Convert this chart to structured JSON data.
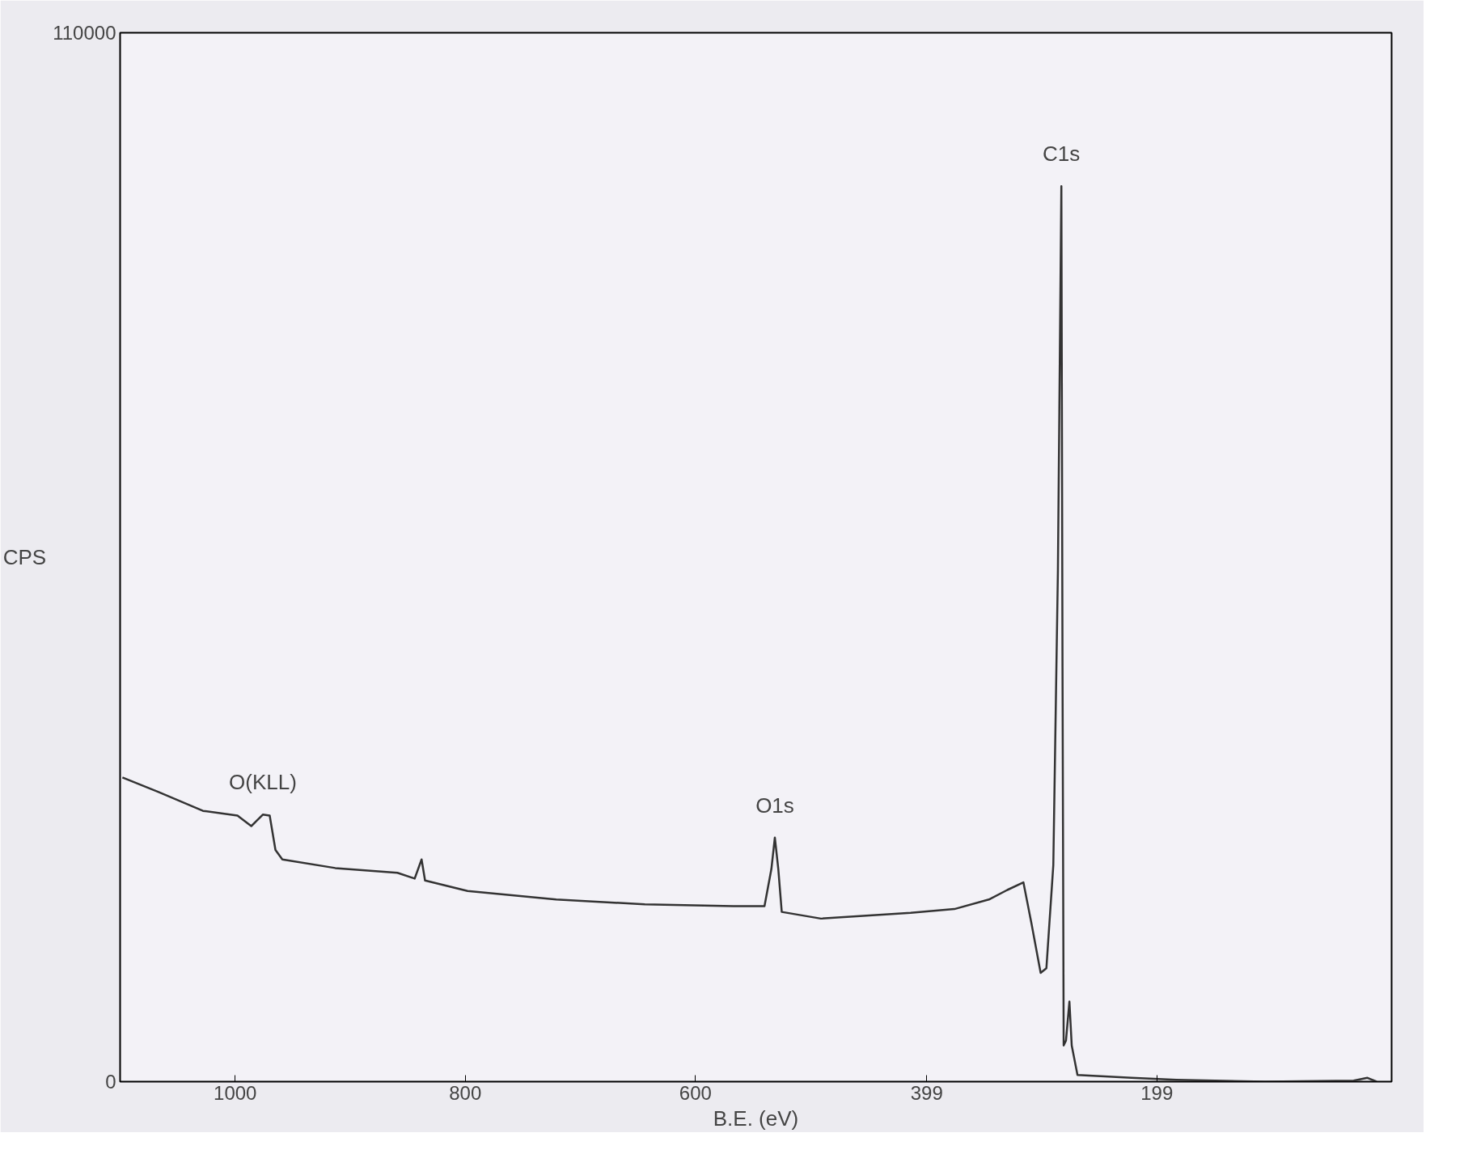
{
  "chart_data": {
    "type": "line",
    "xlabel": "B.E. (eV)",
    "ylabel": "CPS",
    "xlim": [
      1100,
      -5
    ],
    "ylim": [
      0,
      110000
    ],
    "xticks": [
      1000,
      800,
      600,
      399,
      199
    ],
    "yticks": [
      0,
      110000
    ],
    "grid": false,
    "marker": "none",
    "line_style": "solid",
    "series": [
      {
        "color": "#333333",
        "x": [
          1098,
          1067,
          1028,
          998,
          986,
          976,
          970,
          965,
          959,
          913,
          859,
          844,
          838,
          835,
          798,
          721,
          644,
          567,
          540,
          534,
          531,
          528,
          525,
          491,
          413,
          375,
          345,
          329,
          315,
          308,
          300,
          295,
          289,
          285,
          282,
          281,
          280,
          278,
          275,
          273,
          268,
          221,
          182,
          105,
          28,
          16,
          8
        ],
        "values": [
          31900,
          30400,
          28400,
          27900,
          26800,
          28000,
          27900,
          24300,
          23300,
          22400,
          21900,
          21300,
          23300,
          21100,
          20000,
          19100,
          18600,
          18400,
          18400,
          22300,
          25600,
          22300,
          17800,
          17100,
          17700,
          18100,
          19100,
          20100,
          20900,
          16600,
          11400,
          11900,
          22700,
          53600,
          93900,
          43400,
          3800,
          4300,
          8400,
          3800,
          700,
          400,
          200,
          0,
          100,
          400,
          0
        ]
      }
    ],
    "annotations": [
      {
        "text": "C1s",
        "x": 282,
        "y": 93900
      },
      {
        "text": "O1s",
        "x": 531,
        "y": 25600
      },
      {
        "text": "O(KLL)",
        "x": 976,
        "y": 28000
      }
    ]
  }
}
